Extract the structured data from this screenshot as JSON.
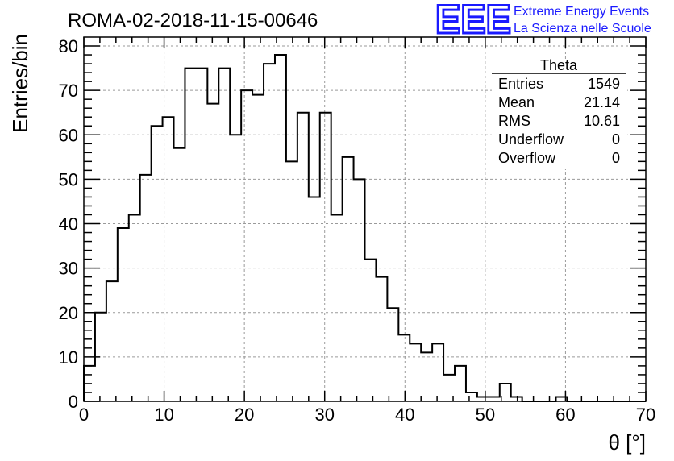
{
  "chart_data": {
    "type": "bar",
    "title": "ROMA-02-2018-11-15-00646",
    "xlabel": "θ [°]",
    "ylabel": "Entries/bin",
    "xlim": [
      0,
      70
    ],
    "ylim": [
      0,
      82
    ],
    "bin_width": 1.4,
    "x_ticks": [
      0,
      10,
      20,
      30,
      40,
      50,
      60,
      70
    ],
    "y_ticks": [
      0,
      10,
      20,
      30,
      40,
      50,
      60,
      70,
      80
    ],
    "grid": true,
    "series": [
      {
        "values": [
          8,
          20,
          27,
          39,
          42,
          51,
          62,
          64,
          57,
          75,
          75,
          67,
          75,
          60,
          70,
          69,
          76,
          78,
          54,
          65,
          46,
          65,
          42,
          55,
          50,
          32,
          28,
          21,
          15,
          13,
          11,
          13,
          6,
          8,
          2,
          1,
          1,
          4,
          1,
          0,
          0,
          0,
          1,
          0,
          0,
          0,
          0,
          0,
          0,
          0
        ]
      }
    ],
    "stats_box": {
      "title": "Theta",
      "placement": "top-right",
      "rows": [
        {
          "label": "Entries",
          "value": "1549"
        },
        {
          "label": "Mean",
          "value": "21.14"
        },
        {
          "label": "RMS",
          "value": "10.61"
        },
        {
          "label": "Underflow",
          "value": "0"
        },
        {
          "label": "Overflow",
          "value": "0"
        }
      ]
    }
  },
  "logo": {
    "mark": "EEE",
    "line1": "Extreme Energy Events",
    "line2": "La Scienza nelle Scuole",
    "color": "#1a1aff"
  }
}
